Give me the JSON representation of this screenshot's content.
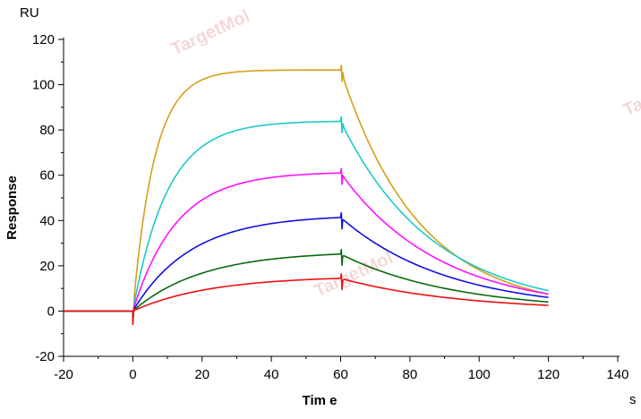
{
  "chart_data": {
    "type": "line",
    "xlabel": "Tim e",
    "ylabel": "Response",
    "x_unit": "s",
    "y_unit": "RU",
    "xlim": [
      -20,
      140
    ],
    "ylim": [
      -20,
      120
    ],
    "x_ticks": [
      -20,
      0,
      20,
      40,
      60,
      80,
      100,
      120,
      140
    ],
    "y_ticks": [
      -20,
      0,
      20,
      40,
      60,
      80,
      100,
      120
    ],
    "grid": false,
    "watermark": "TargetMol",
    "series": [
      {
        "color": "#d4a017",
        "plateau": 106.5,
        "k_on": 0.16,
        "k_off": 0.042,
        "end_value": 7.5
      },
      {
        "color": "#1ec8c8",
        "plateau": 84.0,
        "k_on": 0.1,
        "k_off": 0.035,
        "end_value": 9.0
      },
      {
        "color": "#ff10ff",
        "plateau": 61.5,
        "k_on": 0.08,
        "k_off": 0.04,
        "end_value": 7.5
      },
      {
        "color": "#1010e0",
        "plateau": 42.5,
        "k_on": 0.06,
        "k_off": 0.04,
        "end_value": 6.0
      },
      {
        "color": "#0a6a0a",
        "plateau": 26.5,
        "k_on": 0.05,
        "k_off": 0.04,
        "end_value": 4.0
      },
      {
        "color": "#ee1111",
        "plateau": 15.5,
        "k_on": 0.045,
        "k_off": 0.04,
        "end_value": 2.5
      }
    ],
    "association_start": 0,
    "dissociation_start": 60,
    "end_time": 120
  }
}
